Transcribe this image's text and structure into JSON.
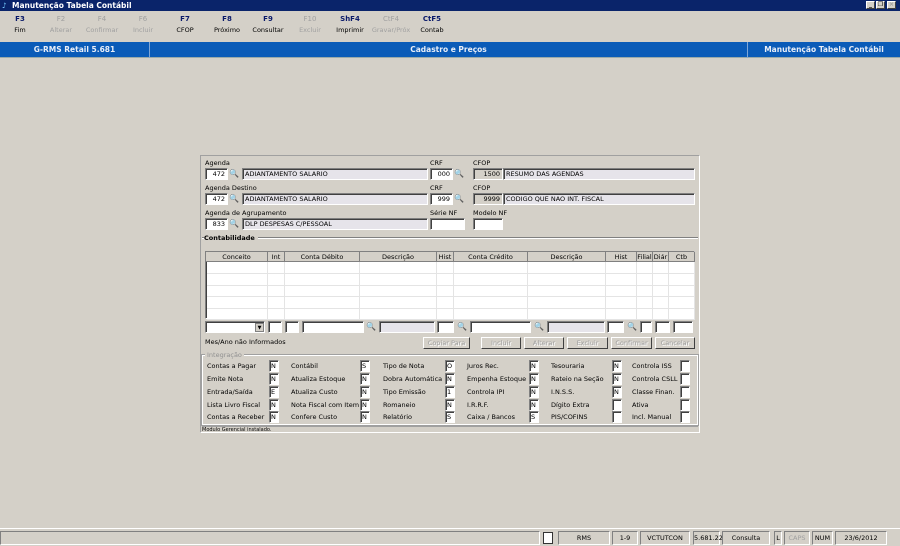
{
  "window": {
    "title": "Manutenção Tabela Contábil",
    "controls": [
      "minimize",
      "restore",
      "close"
    ]
  },
  "toolbar": [
    {
      "key": "F3",
      "label": "Fim",
      "enabled": true
    },
    {
      "key": "F2",
      "label": "Alterar",
      "enabled": false
    },
    {
      "key": "F4",
      "label": "Confirmar",
      "enabled": false
    },
    {
      "key": "F6",
      "label": "Incluir",
      "enabled": false
    },
    {
      "key": "F7",
      "label": "CFOP",
      "enabled": true
    },
    {
      "key": "F8",
      "label": "Próximo",
      "enabled": true
    },
    {
      "key": "F9",
      "label": "Consultar",
      "enabled": true
    },
    {
      "key": "F10",
      "label": "Excluir",
      "enabled": false
    },
    {
      "key": "ShF4",
      "label": "Imprimir",
      "enabled": true
    },
    {
      "key": "CtF4",
      "label": "Gravar/Próx",
      "enabled": false
    },
    {
      "key": "CtF5",
      "label": "Contab",
      "enabled": true
    }
  ],
  "header": {
    "app": "G-RMS Retail 5.681",
    "module": "Cadastro e Preços",
    "screen": "Manutenção Tabela Contábil"
  },
  "form": {
    "agenda": {
      "label": "Agenda",
      "code": "472",
      "desc": "ADIANTAMENTO SALARIO"
    },
    "crf1": {
      "label": "CRF",
      "value": "000"
    },
    "cfop1": {
      "label": "CFOP",
      "code": "1500",
      "desc": "RESUMO DAS AGENDAS"
    },
    "agenda_destino": {
      "label": "Agenda Destino",
      "code": "472",
      "desc": "ADIANTAMENTO SALARIO"
    },
    "crf2": {
      "label": "CRF",
      "value": "999"
    },
    "cfop2": {
      "label": "CFOP",
      "code": "9999",
      "desc": "CODIGO QUE NAO INT. FISCAL"
    },
    "agenda_agrup": {
      "label": "Agenda de Agrupamento",
      "code": "833",
      "desc": "DLP DESPESAS C/PESSOAL"
    },
    "serie_nf": {
      "label": "Série NF",
      "value": ""
    },
    "modelo_nf": {
      "label": "Modelo NF",
      "value": ""
    }
  },
  "contabilidade": {
    "title": "Contabilidade",
    "columns": [
      "Conceito",
      "Int",
      "Conta Débito",
      "Descrição",
      "Hist",
      "Conta Crédito",
      "Descrição",
      "Hist",
      "Filial",
      "Diár",
      "Ctb"
    ],
    "rows": [],
    "message": "Mes/Ano não Informados",
    "buttons": [
      {
        "label": "Copiar Para",
        "enabled": false
      },
      {
        "label": "Incluir",
        "enabled": false
      },
      {
        "label": "Alterar",
        "enabled": false
      },
      {
        "label": "Excluir",
        "enabled": false
      },
      {
        "label": "Confirmar",
        "enabled": false
      },
      {
        "label": "Cancelar",
        "enabled": false
      }
    ]
  },
  "integracao": {
    "title": "Integração",
    "columns": [
      [
        {
          "label": "Contas a Pagar",
          "value": "N"
        },
        {
          "label": "Emite Nota",
          "value": "N"
        },
        {
          "label": "Entrada/Saída",
          "value": "E"
        },
        {
          "label": "Lista Livro Fiscal",
          "value": "N"
        },
        {
          "label": "Contas a Receber",
          "value": "N"
        }
      ],
      [
        {
          "label": "Contábil",
          "value": "S"
        },
        {
          "label": "Atualiza Estoque",
          "value": "N"
        },
        {
          "label": "Atualiza Custo",
          "value": "N"
        },
        {
          "label": "Nota Fiscal com Item",
          "value": "N"
        },
        {
          "label": "Confere Custo",
          "value": "N"
        }
      ],
      [
        {
          "label": "Tipo de Nota",
          "value": "O"
        },
        {
          "label": "Dobra Automática",
          "value": "N"
        },
        {
          "label": "Tipo Emissão",
          "value": "1"
        },
        {
          "label": "Romaneio",
          "value": "N"
        },
        {
          "label": "Relatório",
          "value": "S"
        }
      ],
      [
        {
          "label": "Juros Rec.",
          "value": "N"
        },
        {
          "label": "Empenha Estoque",
          "value": "N"
        },
        {
          "label": "Controla IPI",
          "value": "N"
        },
        {
          "label": "I.R.R.F.",
          "value": "N"
        },
        {
          "label": "Caixa / Bancos",
          "value": "S"
        }
      ],
      [
        {
          "label": "Tesouraria",
          "value": "N"
        },
        {
          "label": "Rateio na Seção",
          "value": "N"
        },
        {
          "label": "I.N.S.S.",
          "value": "N"
        },
        {
          "label": "Dígito Extra",
          "value": ""
        },
        {
          "label": "PIS/COFINS",
          "value": ""
        }
      ],
      [
        {
          "label": "Controla ISS",
          "value": ""
        },
        {
          "label": "Controla CSLL",
          "value": ""
        },
        {
          "label": "Classe Finan.",
          "value": ""
        },
        {
          "label": "Ativa",
          "value": ""
        },
        {
          "label": "Incl. Manual",
          "value": ""
        }
      ]
    ]
  },
  "panel_status": "Modulo Gerencial instalado.",
  "statusbar": [
    "RMS",
    "1-9",
    "VCTUTCON",
    "5.681.22",
    "Consulta",
    "L",
    "CAPS",
    "NUM",
    "23/6/2012"
  ]
}
